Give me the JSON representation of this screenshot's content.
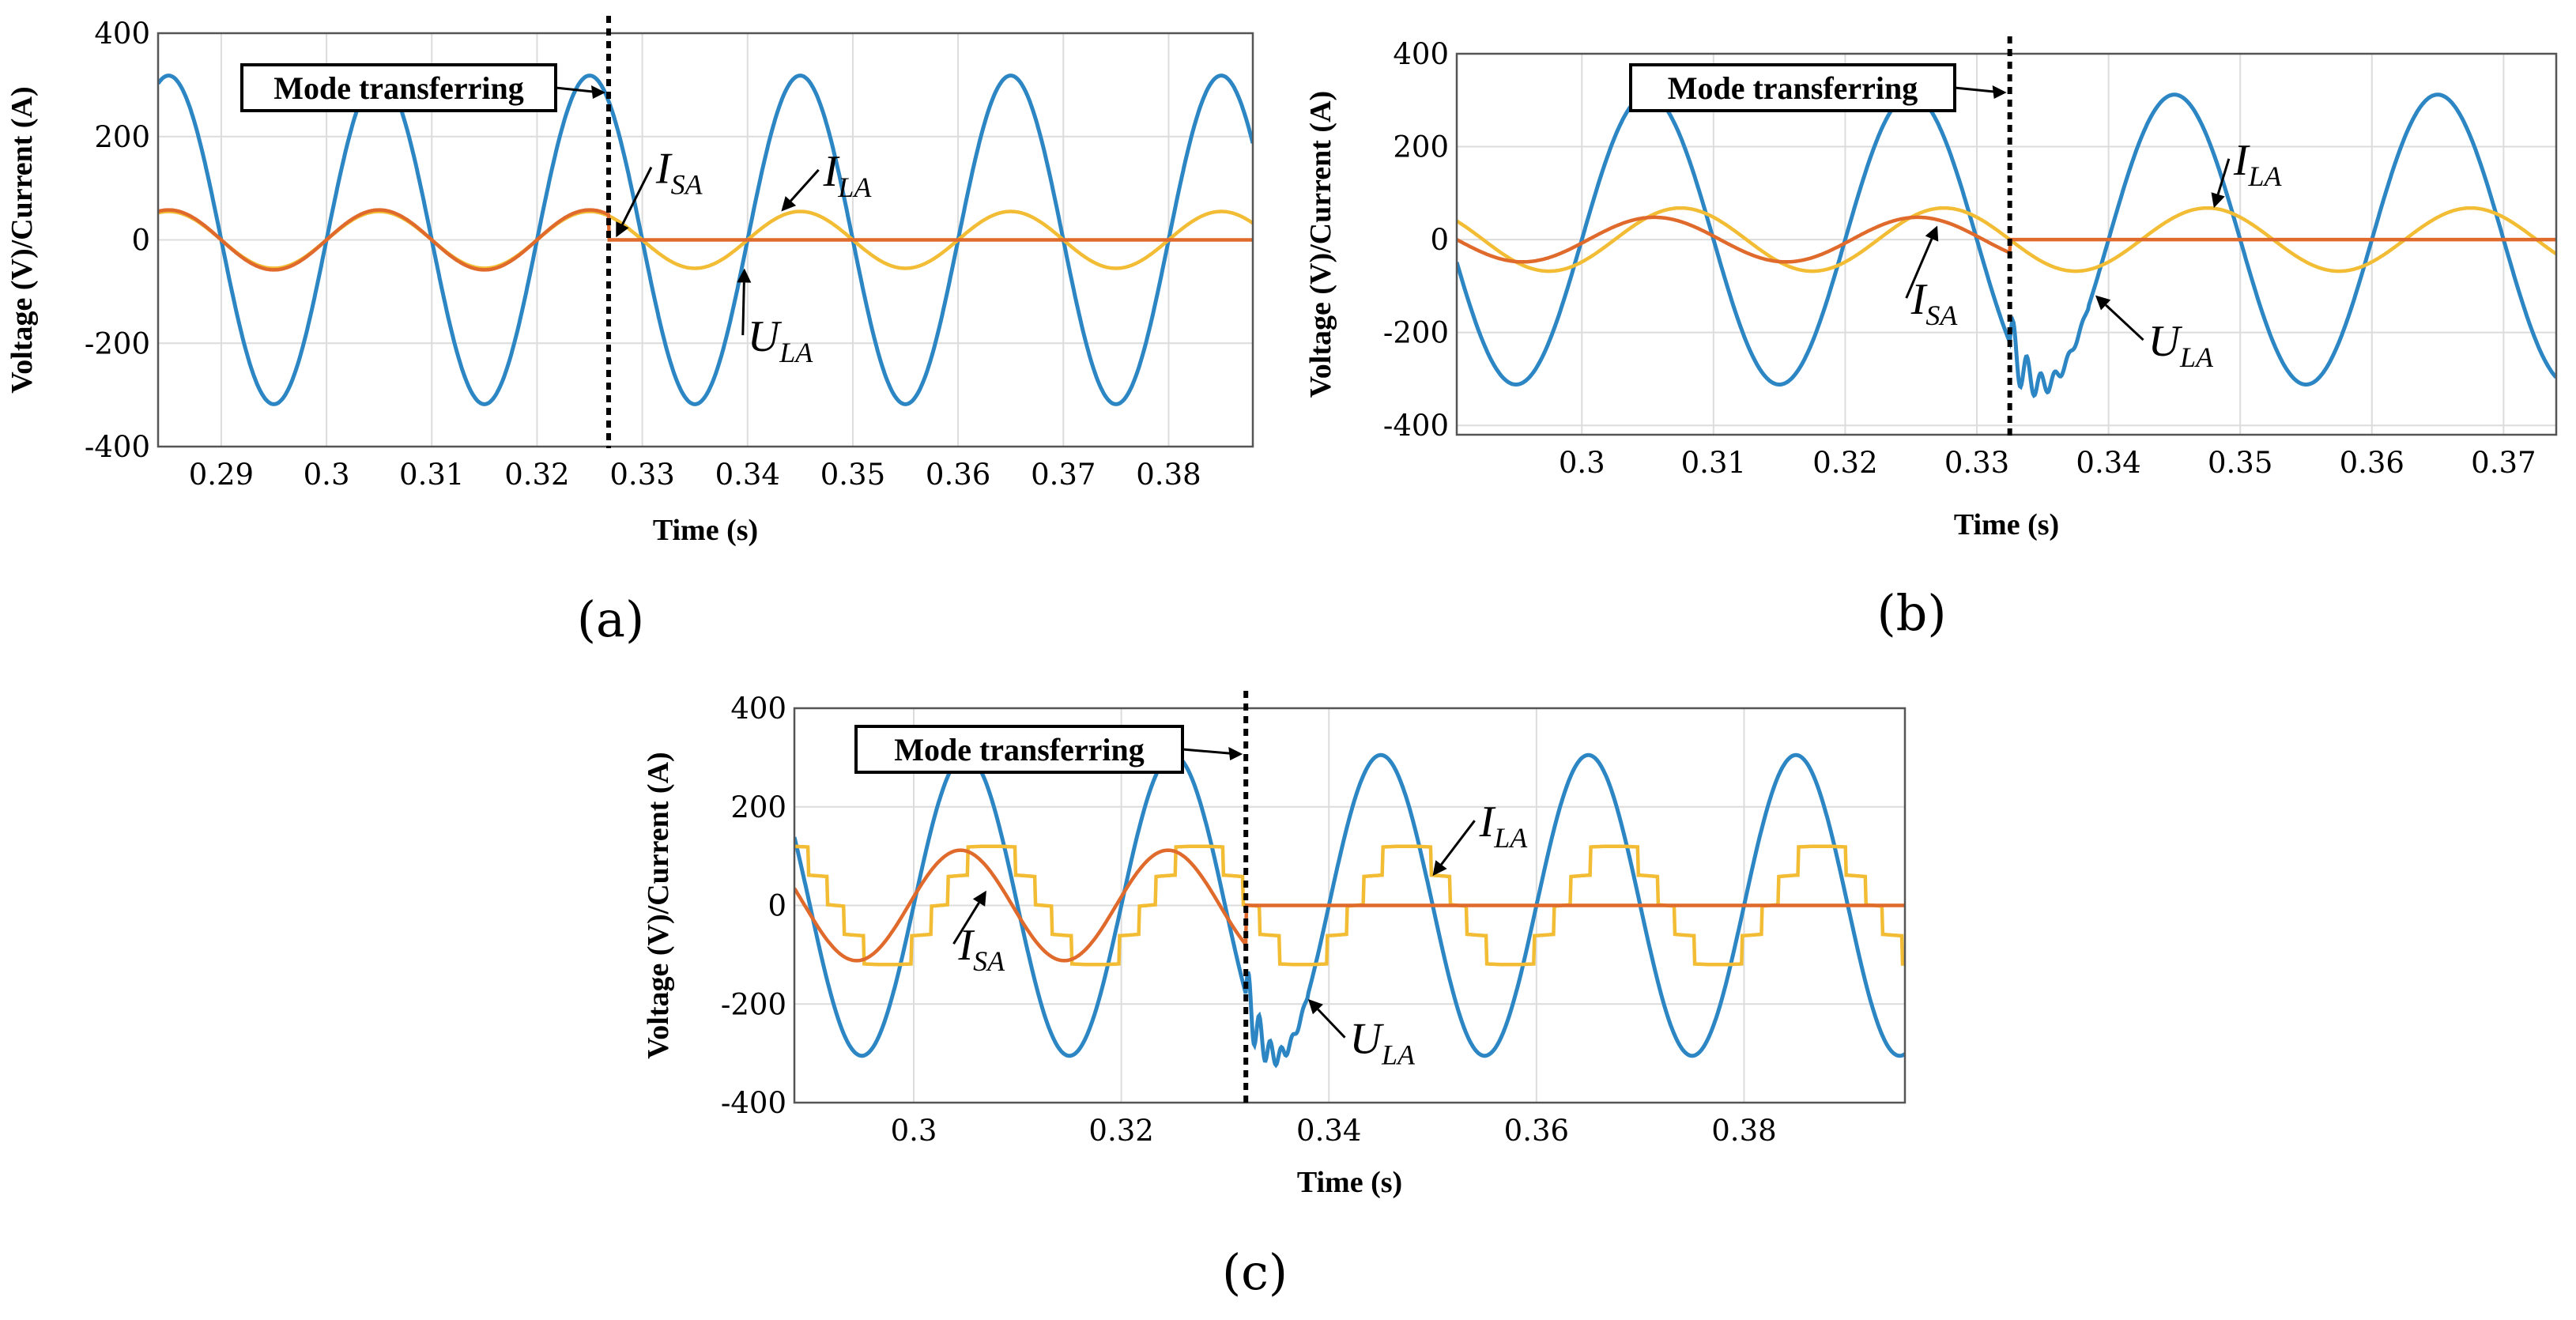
{
  "colors": {
    "U_LA": "#2d86c4",
    "I_SA": "#e06a2c",
    "I_LA": "#f2bd35",
    "grid": "#dcdcdc",
    "frame": "#555555",
    "background": "#ffffff"
  },
  "chart_data": [
    {
      "panel_label": "(a)",
      "type": "line",
      "xlabel": "Time (s)",
      "ylabel": "Voltage (V)/Current (A)",
      "xlim": [
        0.284,
        0.388
      ],
      "ylim": [
        -400,
        400
      ],
      "xticks": [
        0.29,
        0.3,
        0.31,
        0.32,
        0.33,
        0.34,
        0.35,
        0.36,
        0.37,
        0.38
      ],
      "xtick_labels": [
        "0.29",
        "0.3",
        "0.31",
        "0.32",
        "0.33",
        "0.34",
        "0.35",
        "0.36",
        "0.37",
        "0.38"
      ],
      "yticks": [
        -400,
        -200,
        0,
        200,
        400
      ],
      "ytick_labels": [
        "-400",
        "-200",
        "0",
        "200",
        "400"
      ],
      "grid": true,
      "mode_transfer_time": 0.3268,
      "annotation_box": "Mode transferring",
      "series": [
        {
          "name": "U_LA",
          "kind": "sine",
          "amplitude": 318,
          "frequency_hz": 50,
          "peak_time": 0.285
        },
        {
          "name": "I_SA",
          "kind": "sine_then_zero",
          "amplitude": 58,
          "frequency_hz": 50,
          "peak_time": 0.285,
          "zero_after": 0.3268
        },
        {
          "name": "I_LA",
          "kind": "sine",
          "amplitude": 55,
          "frequency_hz": 50,
          "peak_time": 0.285
        }
      ],
      "labels": [
        {
          "main": "I",
          "sub": "SA",
          "x": 0.3313,
          "y": 110,
          "arrow_to_x": 0.3275,
          "arrow_to_y": 5
        },
        {
          "main": "I",
          "sub": "LA",
          "x": 0.3472,
          "y": 105,
          "arrow_to_x": 0.3432,
          "arrow_to_y": 55
        },
        {
          "main": "U",
          "sub": "LA",
          "x": 0.34,
          "y": -215,
          "arrow_to_x": 0.3397,
          "arrow_to_y": -55
        }
      ]
    },
    {
      "panel_label": "(b)",
      "type": "line",
      "xlabel": "Time (s)",
      "ylabel": "Voltage (V)/Current (A)",
      "xlim": [
        0.2905,
        0.374
      ],
      "ylim": [
        -420,
        400
      ],
      "xticks": [
        0.3,
        0.31,
        0.32,
        0.33,
        0.34,
        0.35,
        0.36,
        0.37
      ],
      "xtick_labels": [
        "0.3",
        "0.31",
        "0.32",
        "0.33",
        "0.34",
        "0.35",
        "0.36",
        "0.37"
      ],
      "yticks": [
        -400,
        -200,
        0,
        200,
        400
      ],
      "ytick_labels": [
        "-400",
        "-200",
        "0",
        "200",
        "400"
      ],
      "grid": true,
      "mode_transfer_time": 0.3325,
      "annotation_box": "Mode transferring",
      "series": [
        {
          "name": "U_LA",
          "kind": "sine_disturbed",
          "amplitude": 312,
          "frequency_hz": 50,
          "peak_time": 0.305
        },
        {
          "name": "I_SA",
          "kind": "sine_then_zero",
          "amplitude": 48,
          "frequency_hz": 50,
          "peak_time": 0.3255,
          "zero_after": 0.3325
        },
        {
          "name": "I_LA",
          "kind": "sine",
          "amplitude": 68,
          "frequency_hz": 50,
          "peak_time": 0.3075
        }
      ],
      "labels": [
        {
          "main": "I",
          "sub": "LA",
          "x": 0.3495,
          "y": 140,
          "arrow_to_x": 0.348,
          "arrow_to_y": 68
        },
        {
          "main": "I",
          "sub": "SA",
          "x": 0.325,
          "y": -160,
          "arrow_to_x": 0.327,
          "arrow_to_y": 30
        },
        {
          "main": "U",
          "sub": "LA",
          "x": 0.343,
          "y": -250,
          "arrow_to_x": 0.339,
          "arrow_to_y": -120
        }
      ]
    },
    {
      "panel_label": "(c)",
      "type": "line",
      "xlabel": "Time (s)",
      "ylabel": "Voltage (V)/Current (A)",
      "xlim": [
        0.2885,
        0.3955
      ],
      "ylim": [
        -400,
        400
      ],
      "xticks": [
        0.3,
        0.32,
        0.34,
        0.36,
        0.38
      ],
      "xtick_labels": [
        "0.3",
        "0.32",
        "0.34",
        "0.36",
        "0.38"
      ],
      "yticks": [
        -400,
        -200,
        0,
        200,
        400
      ],
      "ytick_labels": [
        "-400",
        "-200",
        "0",
        "200",
        "400"
      ],
      "grid": true,
      "mode_transfer_time": 0.332,
      "annotation_box": "Mode transferring",
      "series": [
        {
          "name": "U_LA",
          "kind": "sine_disturbed",
          "amplitude": 305,
          "frequency_hz": 50,
          "peak_time": 0.305
        },
        {
          "name": "I_SA",
          "kind": "sine_then_zero",
          "amplitude": 112,
          "frequency_hz": 50,
          "peak_time": 0.3045,
          "zero_after": 0.332
        },
        {
          "name": "I_LA",
          "kind": "stepped_sine",
          "amplitude": 120,
          "frequency_hz": 50,
          "peak_time": 0.3075
        }
      ],
      "labels": [
        {
          "main": "I",
          "sub": "LA",
          "x": 0.3545,
          "y": 140,
          "arrow_to_x": 0.35,
          "arrow_to_y": 60
        },
        {
          "main": "I",
          "sub": "SA",
          "x": 0.3043,
          "y": -110,
          "arrow_to_x": 0.307,
          "arrow_to_y": 30
        },
        {
          "main": "U",
          "sub": "LA",
          "x": 0.342,
          "y": -300,
          "arrow_to_x": 0.338,
          "arrow_to_y": -190
        }
      ]
    }
  ]
}
